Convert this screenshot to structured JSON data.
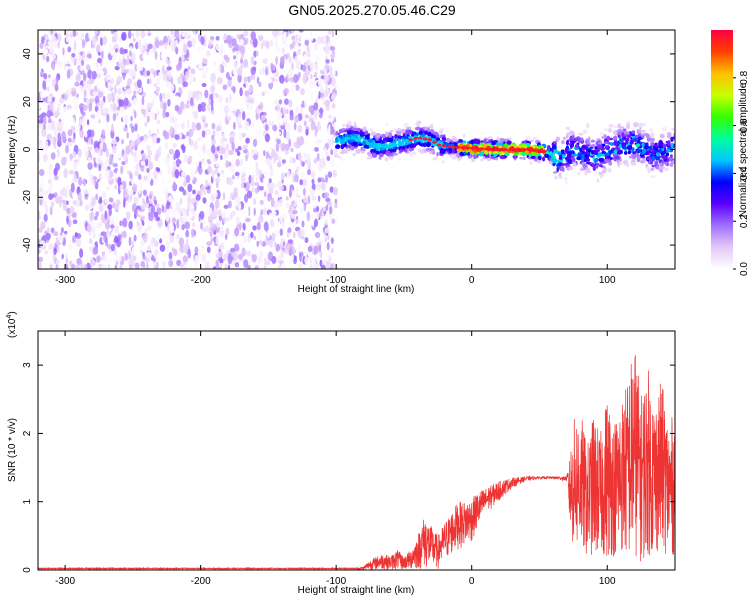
{
  "title": "GN05.2025.270.05.46.C29",
  "chart_data": [
    {
      "type": "heatmap",
      "xlabel": "Height of straight line (km)",
      "ylabel": "Frequency (Hz)",
      "xlim": [
        -320,
        150
      ],
      "ylim": [
        -50,
        50
      ],
      "xticks": [
        -300,
        -200,
        -100,
        0,
        100
      ],
      "yticks": [
        -40,
        -20,
        0,
        20,
        40
      ],
      "colorbar": {
        "label": "Normalized spectral amplitude",
        "range": [
          0.0,
          1.0
        ],
        "ticks": [
          0.0,
          0.2,
          0.4,
          0.6,
          0.8
        ],
        "colors": [
          "#ffffff",
          "#e4c8f8",
          "#a070ff",
          "#5a00ff",
          "#0000ff",
          "#00c8ff",
          "#00ff9a",
          "#33ff00",
          "#c8ff00",
          "#ffc000",
          "#ff4000",
          "#ff0040"
        ]
      },
      "regions": [
        {
          "x_range": [
            -320,
            -100
          ],
          "frequency_range": [
            -50,
            50
          ],
          "amplitude": [
            0.0,
            0.2
          ],
          "description_shown": "broadband noise"
        },
        {
          "x_range": [
            -100,
            150
          ],
          "frequency_range": [
            -12,
            15
          ],
          "amplitude": [
            0.0,
            1.0
          ],
          "description_shown": "narrow band around 0 Hz"
        }
      ],
      "ridge_frequency_hz": [
        {
          "x": -100,
          "y": 3
        },
        {
          "x": -90,
          "y": 5
        },
        {
          "x": -80,
          "y": 4
        },
        {
          "x": -70,
          "y": 1
        },
        {
          "x": -60,
          "y": 2
        },
        {
          "x": -50,
          "y": 3
        },
        {
          "x": -40,
          "y": 5
        },
        {
          "x": -30,
          "y": 4
        },
        {
          "x": -25,
          "y": 2
        },
        {
          "x": -15,
          "y": 1
        },
        {
          "x": 0,
          "y": 0.5
        },
        {
          "x": 20,
          "y": 0
        },
        {
          "x": 40,
          "y": 0
        },
        {
          "x": 55,
          "y": -1
        },
        {
          "x": 65,
          "y": -4
        },
        {
          "x": 75,
          "y": 0
        },
        {
          "x": 90,
          "y": -3
        },
        {
          "x": 100,
          "y": -1
        },
        {
          "x": 110,
          "y": 2
        },
        {
          "x": 120,
          "y": 3
        },
        {
          "x": 135,
          "y": -2
        },
        {
          "x": 150,
          "y": 1
        }
      ]
    },
    {
      "type": "line",
      "xlabel": "Height of straight line (km)",
      "ylabel": "SNR (10 * v/v)",
      "scale_label": "(x10",
      "scale_exponent": "4",
      "xlim": [
        -320,
        150
      ],
      "ylim": [
        0,
        3.5
      ],
      "xticks": [
        -300,
        -200,
        -100,
        0,
        100
      ],
      "yticks": [
        0,
        1,
        2,
        3
      ],
      "color": "#ee3333",
      "series": [
        {
          "x": [
            -320,
            -300,
            -250,
            -200,
            -150,
            -100,
            -90,
            -80,
            -75,
            -70,
            -65,
            -60,
            -55,
            -50,
            -45,
            -40,
            -35,
            -30,
            -25,
            -20,
            -15,
            -10,
            -5,
            0,
            5,
            10,
            15,
            20,
            25,
            30,
            40,
            50,
            60,
            70,
            72,
            75,
            80,
            85,
            90,
            95,
            100,
            105,
            110,
            115,
            120,
            125,
            130,
            135,
            140,
            145,
            150
          ],
          "y": [
            0.02,
            0.02,
            0.02,
            0.03,
            0.02,
            0.02,
            0.02,
            0.05,
            0.15,
            0.2,
            0.25,
            0.2,
            0.3,
            0.2,
            0.3,
            0.5,
            0.8,
            0.65,
            0.5,
            0.7,
            0.85,
            1.0,
            1.0,
            1.05,
            1.15,
            1.2,
            1.25,
            1.3,
            1.33,
            1.35,
            1.37,
            1.37,
            1.37,
            1.37,
            1.6,
            2.2,
            2.4,
            1.8,
            2.3,
            2.0,
            2.6,
            2.2,
            2.5,
            2.8,
            3.4,
            2.6,
            3.0,
            2.5,
            2.8,
            2.2,
            2.3
          ],
          "y_lower_envelope": [
            0.0,
            0.0,
            0.0,
            0.0,
            0.0,
            0.0,
            0.0,
            0.0,
            0.0,
            0.0,
            0.0,
            0.0,
            0.0,
            0.0,
            0.0,
            0.0,
            0.0,
            0.0,
            0.0,
            0.1,
            0.2,
            0.3,
            0.35,
            0.4,
            0.6,
            0.8,
            0.9,
            1.0,
            1.1,
            1.2,
            1.3,
            1.33,
            1.33,
            1.3,
            0.7,
            0.3,
            0.3,
            0.2,
            0.2,
            0.2,
            0.15,
            0.2,
            0.25,
            0.15,
            0.2,
            0.1,
            0.2,
            0.2,
            0.3,
            0.2,
            0.2
          ]
        }
      ]
    }
  ]
}
